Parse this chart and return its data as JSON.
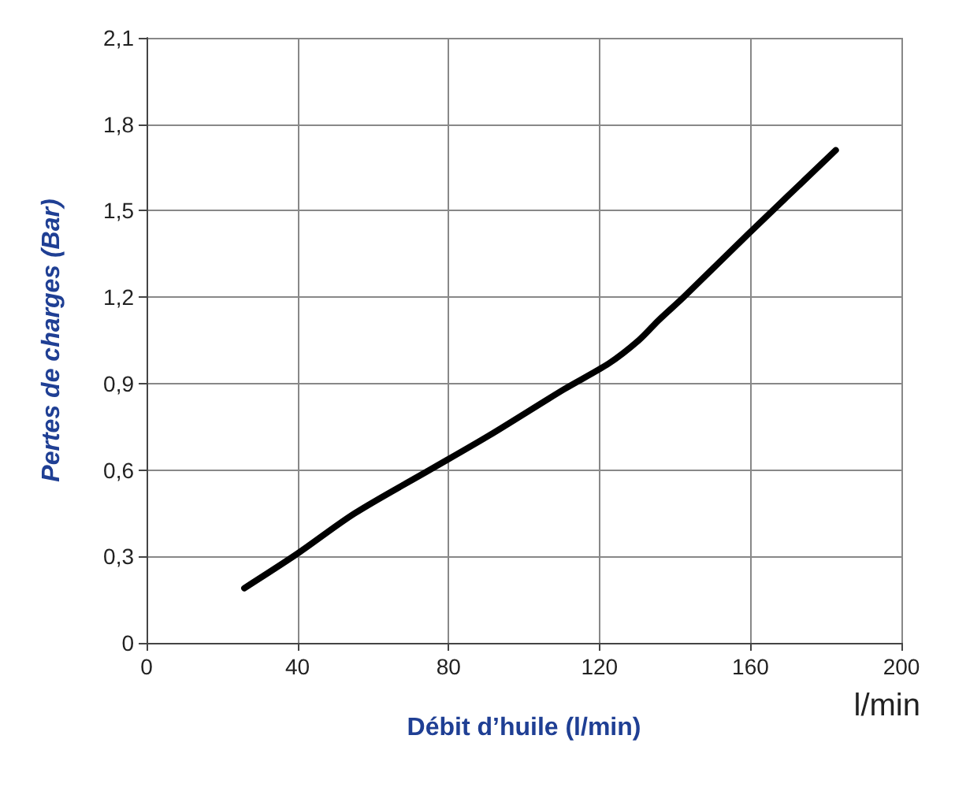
{
  "chart_data": {
    "type": "line",
    "xlabel": "Débit d’huile (l/min)",
    "ylabel": "Pertes de charges (Bar)",
    "annotations": [
      "l/min"
    ],
    "series": [
      {
        "color": "#000000",
        "x": [
          25.9,
          40,
          55.2,
          75,
          90.8,
          110.6,
          122.5,
          130.4,
          135.7,
          142.3,
          159.5,
          182.6
        ],
        "values": [
          0.19,
          0.31,
          0.45,
          0.6,
          0.72,
          0.88,
          0.97,
          1.05,
          1.12,
          1.2,
          1.42,
          1.71
        ]
      }
    ],
    "xlim": [
      0,
      200
    ],
    "xticks": [
      0,
      40,
      80,
      120,
      160,
      200
    ],
    "ylim": [
      0,
      2.1
    ],
    "yticks": [
      {
        "value": 0,
        "label": "0"
      },
      {
        "value": 0.3,
        "label": "0,3"
      },
      {
        "value": 0.6,
        "label": "0,6"
      },
      {
        "value": 0.9,
        "label": "0,9"
      },
      {
        "value": 1.2,
        "label": "1,2"
      },
      {
        "value": 1.5,
        "label": "1,5"
      },
      {
        "value": 1.8,
        "label": "1,8"
      },
      {
        "value": 2.1,
        "label": "2,1"
      }
    ],
    "grid": true,
    "marker": "none",
    "line_style": "solid"
  }
}
